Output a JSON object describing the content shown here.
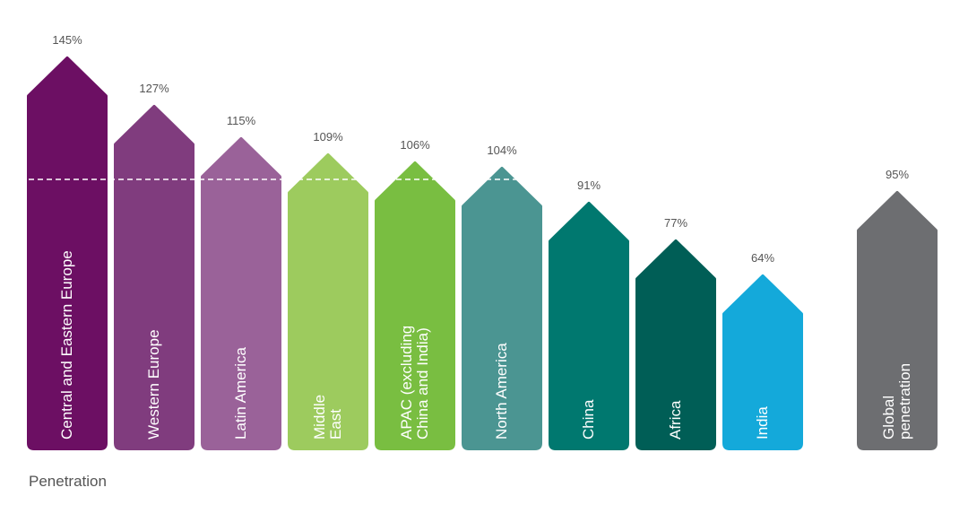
{
  "chart_data": {
    "type": "arrow-bar",
    "categories": [
      "Central and Eastern Europe",
      "Western Europe",
      "Latin America",
      "Middle\nEast",
      "APAC (excluding\nChina and India)",
      "North America",
      "China",
      "Africa",
      "India",
      "Global penetration"
    ],
    "values": [
      145,
      127,
      115,
      109,
      106,
      104,
      91,
      77,
      64,
      95
    ],
    "value_labels": [
      "145%",
      "127%",
      "115%",
      "109%",
      "106%",
      "104%",
      "91%",
      "77%",
      "64%",
      "95%"
    ],
    "colors": [
      "#6c0f63",
      "#803c7e",
      "#9a6299",
      "#9dcb5e",
      "#79be41",
      "#4b9592",
      "#00786f",
      "#005e56",
      "#14a9da",
      "#6d6e71"
    ],
    "ylim": [
      0,
      150
    ],
    "reference_line": 100,
    "caption": "Penetration"
  }
}
